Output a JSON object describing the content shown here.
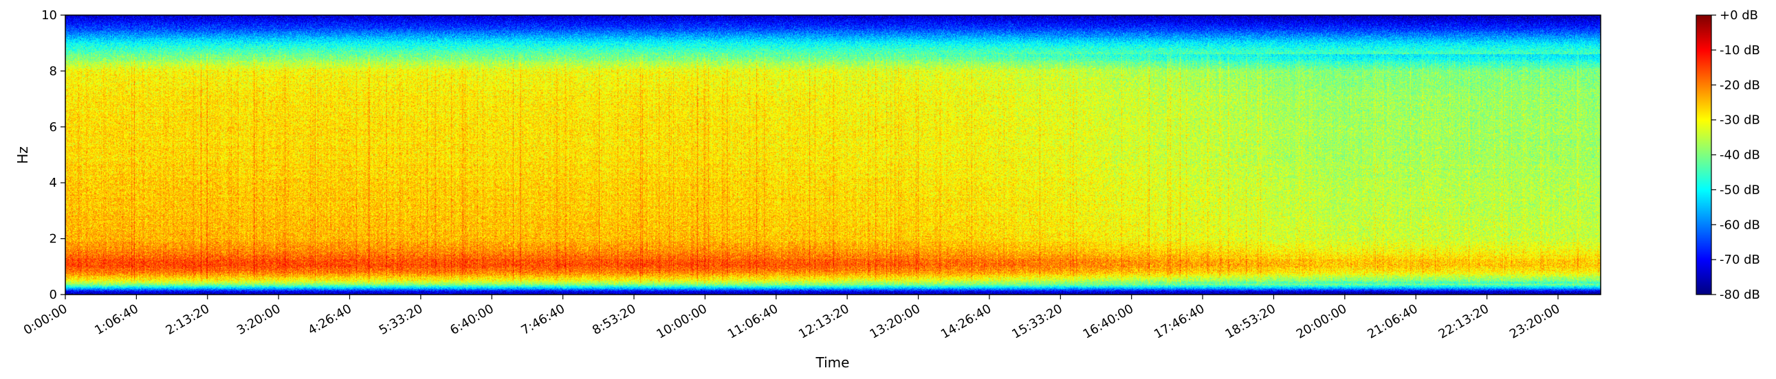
{
  "chart_data": {
    "type": "heatmap",
    "title": "",
    "xlabel": "Time",
    "ylabel": "Hz",
    "x_unit": "seconds",
    "xlim": [
      0,
      86400
    ],
    "ylim": [
      0,
      10
    ],
    "x_ticks": [
      {
        "value": 0,
        "label": "0:00:00"
      },
      {
        "value": 4000,
        "label": "1:06:40"
      },
      {
        "value": 8000,
        "label": "2:13:20"
      },
      {
        "value": 12000,
        "label": "3:20:00"
      },
      {
        "value": 16000,
        "label": "4:26:40"
      },
      {
        "value": 20000,
        "label": "5:33:20"
      },
      {
        "value": 24000,
        "label": "6:40:00"
      },
      {
        "value": 28000,
        "label": "7:46:40"
      },
      {
        "value": 32000,
        "label": "8:53:20"
      },
      {
        "value": 36000,
        "label": "10:00:00"
      },
      {
        "value": 40000,
        "label": "11:06:40"
      },
      {
        "value": 44000,
        "label": "12:13:20"
      },
      {
        "value": 48000,
        "label": "13:20:00"
      },
      {
        "value": 52000,
        "label": "14:26:40"
      },
      {
        "value": 56000,
        "label": "15:33:20"
      },
      {
        "value": 60000,
        "label": "16:40:00"
      },
      {
        "value": 64000,
        "label": "17:46:40"
      },
      {
        "value": 68000,
        "label": "18:53:20"
      },
      {
        "value": 72000,
        "label": "20:00:00"
      },
      {
        "value": 76000,
        "label": "21:06:40"
      },
      {
        "value": 80000,
        "label": "22:13:20"
      },
      {
        "value": 84000,
        "label": "23:20:00"
      }
    ],
    "y_ticks": [
      {
        "value": 0,
        "label": "0"
      },
      {
        "value": 2,
        "label": "2"
      },
      {
        "value": 4,
        "label": "4"
      },
      {
        "value": 6,
        "label": "6"
      },
      {
        "value": 8,
        "label": "8"
      },
      {
        "value": 10,
        "label": "10"
      }
    ],
    "colormap": "jet",
    "colorbar": {
      "range": [
        -80,
        0
      ],
      "ticks": [
        {
          "value": 0,
          "label": "+0 dB"
        },
        {
          "value": -10,
          "label": "-10 dB"
        },
        {
          "value": -20,
          "label": "-20 dB"
        },
        {
          "value": -30,
          "label": "-30 dB"
        },
        {
          "value": -40,
          "label": "-40 dB"
        },
        {
          "value": -50,
          "label": "-50 dB"
        },
        {
          "value": -60,
          "label": "-60 dB"
        },
        {
          "value": -70,
          "label": "-70 dB"
        },
        {
          "value": -80,
          "label": "-80 dB"
        }
      ],
      "stops": [
        "#00007f",
        "#0000ff",
        "#007fff",
        "#00ffff",
        "#7fff7f",
        "#ffff00",
        "#ff7f00",
        "#ff0000",
        "#7f0000"
      ]
    },
    "grid": false,
    "frequency_profile": [
      {
        "hz": 0.0,
        "db": -75
      },
      {
        "hz": 0.1,
        "db": -72
      },
      {
        "hz": 0.2,
        "db": -58
      },
      {
        "hz": 0.35,
        "db": -40
      },
      {
        "hz": 0.5,
        "db": -30
      },
      {
        "hz": 0.8,
        "db": -19
      },
      {
        "hz": 1.1,
        "db": -15
      },
      {
        "hz": 1.5,
        "db": -20
      },
      {
        "hz": 2.0,
        "db": -24
      },
      {
        "hz": 3.0,
        "db": -25
      },
      {
        "hz": 5.0,
        "db": -27
      },
      {
        "hz": 7.0,
        "db": -28
      },
      {
        "hz": 8.0,
        "db": -30
      },
      {
        "hz": 8.5,
        "db": -40
      },
      {
        "hz": 9.0,
        "db": -50
      },
      {
        "hz": 9.5,
        "db": -64
      },
      {
        "hz": 10.0,
        "db": -74
      }
    ],
    "time_profile": [
      {
        "t": 0,
        "offset_db": 0
      },
      {
        "t": 36000,
        "offset_db": -1
      },
      {
        "t": 52000,
        "offset_db": -3
      },
      {
        "t": 60000,
        "offset_db": -6
      },
      {
        "t": 72000,
        "offset_db": -10
      },
      {
        "t": 86400,
        "offset_db": -10
      }
    ]
  }
}
